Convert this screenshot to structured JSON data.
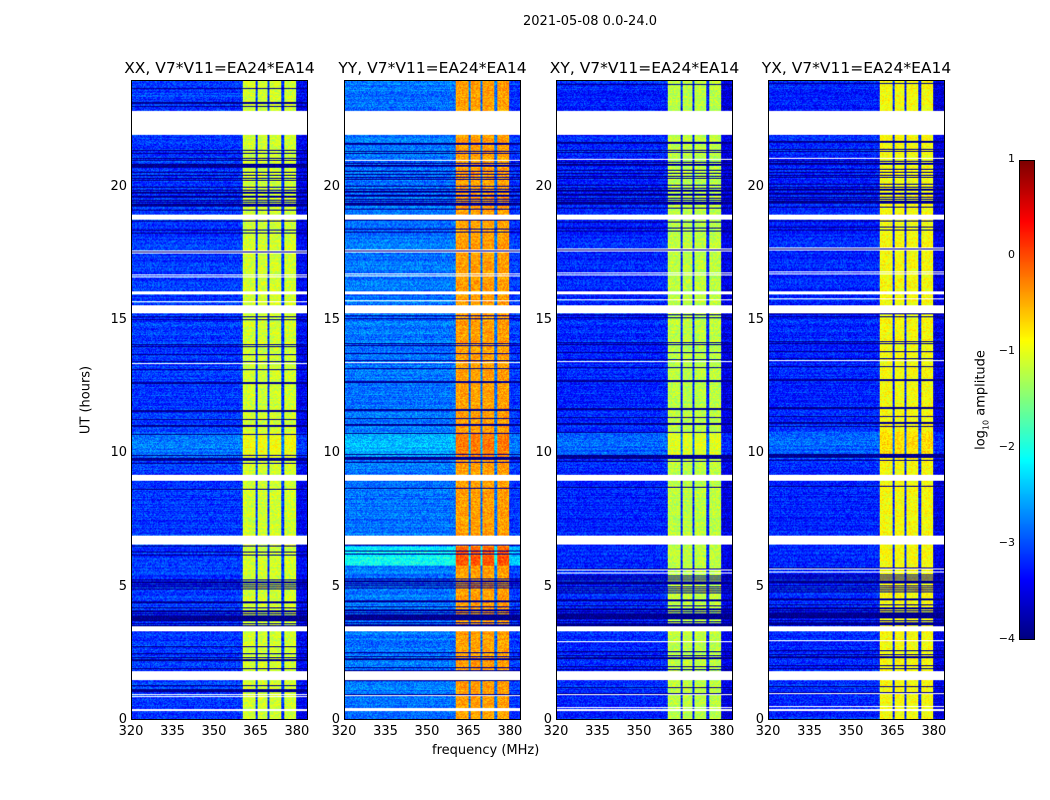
{
  "suptitle": "2021-05-08 0.0-24.0",
  "chart_data": {
    "type": "heatmap",
    "title": "2021-05-08 0.0-24.0",
    "xlabel": "frequency (MHz)",
    "ylabel": "UT (hours)",
    "xlim": [
      320,
      384
    ],
    "ylim": [
      0,
      24
    ],
    "xticks": [
      "320",
      "335",
      "350",
      "365",
      "380"
    ],
    "xtick_values": [
      320,
      335,
      350,
      365,
      380
    ],
    "yticks": [
      "0",
      "5",
      "10",
      "15",
      "20"
    ],
    "ytick_values": [
      0,
      5,
      10,
      15,
      20
    ],
    "panels": [
      {
        "title": "XX, V7*V11=EA24*EA14",
        "background_log_amp": -3.1,
        "band_log_amp": -1.1
      },
      {
        "title": "YY, V7*V11=EA24*EA14",
        "background_log_amp": -2.8,
        "band_log_amp": -0.4
      },
      {
        "title": "XY, V7*V11=EA24*EA14",
        "background_log_amp": -3.2,
        "band_log_amp": -1.2
      },
      {
        "title": "YX, V7*V11=EA24*EA14",
        "background_log_amp": -3.2,
        "band_log_amp": -0.9
      }
    ],
    "strong_band_mhz": [
      360.4,
      380
    ],
    "band_gaps_mhz": [
      365.3,
      369.8,
      375.0
    ],
    "flagged_hours": [
      [
        22.0,
        22.9
      ],
      [
        18.8,
        19.0
      ],
      [
        16.0,
        16.1
      ],
      [
        15.3,
        15.6
      ],
      [
        9.0,
        9.2
      ],
      [
        6.6,
        6.9
      ],
      [
        3.3,
        3.5
      ],
      [
        1.5,
        1.8
      ],
      [
        0.3,
        0.4
      ]
    ],
    "low_amp_hours": [
      [
        18.0,
        21.8
      ],
      [
        11.0,
        11.8
      ],
      [
        9.5,
        10.0
      ],
      [
        3.5,
        5.5
      ],
      [
        2.2,
        2.8
      ],
      [
        0.9,
        1.1
      ]
    ],
    "colorbar": {
      "label": "log10 amplitude",
      "label_main": "log",
      "label_sub": "10",
      "label_rest": " amplitude",
      "range": [
        -4,
        1
      ],
      "ticks": [
        "1",
        "0",
        "−1",
        "−2",
        "−3",
        "−4"
      ],
      "tick_values": [
        1,
        0,
        -1,
        -2,
        -3,
        -4
      ],
      "colormap": "jet"
    }
  }
}
